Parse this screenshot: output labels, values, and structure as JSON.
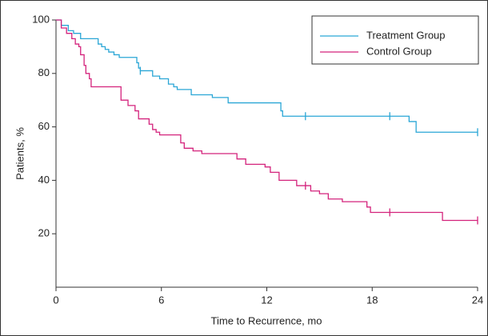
{
  "chart_data": {
    "type": "step",
    "xlabel": "Time to Recurrence, mo",
    "ylabel": "Patients, %",
    "xlim": [
      0,
      24
    ],
    "xticks": [
      0,
      6,
      12,
      18,
      24
    ],
    "ylim": [
      0,
      100
    ],
    "yticks": [
      20,
      40,
      60,
      80,
      100
    ],
    "legend": "upper right",
    "series": [
      {
        "name": "Treatment Group",
        "color": "#2aa6d6",
        "x": [
          0,
          0.3,
          0.7,
          1.0,
          1.4,
          2.4,
          2.6,
          2.8,
          3.0,
          3.3,
          3.6,
          4.6,
          4.7,
          4.8,
          5.5,
          5.9,
          6.4,
          6.7,
          6.9,
          7.7,
          8.9,
          9.8,
          12.8,
          12.9,
          20.1,
          20.5
        ],
        "values": [
          100,
          98,
          96,
          95,
          93,
          91,
          90,
          89,
          88,
          87,
          86,
          84,
          82,
          81,
          79,
          78,
          76,
          75,
          74,
          72,
          71,
          69,
          66,
          64,
          62,
          58
        ],
        "censored_x": [
          4.8,
          14.2,
          19.0,
          24
        ],
        "censored_values": [
          81,
          64,
          64,
          58
        ]
      },
      {
        "name": "Control Group",
        "color": "#d4237c",
        "x": [
          0,
          0.3,
          0.6,
          0.9,
          1.1,
          1.3,
          1.4,
          1.6,
          1.7,
          1.9,
          2.0,
          3.7,
          4.1,
          4.5,
          4.7,
          5.3,
          5.5,
          5.7,
          5.9,
          7.1,
          7.3,
          7.8,
          8.3,
          10.3,
          10.8,
          11.9,
          12.2,
          12.7,
          13.7,
          14.5,
          15.0,
          15.5,
          16.3,
          17.7,
          17.9,
          22.0
        ],
        "values": [
          100,
          97,
          95,
          93,
          91,
          90,
          87,
          83,
          80,
          78,
          75,
          70,
          68,
          66,
          63,
          61,
          59,
          58,
          57,
          54,
          52,
          51,
          50,
          48,
          46,
          45,
          43,
          40,
          38,
          36,
          35,
          33,
          32,
          30,
          28,
          25
        ],
        "censored_x": [
          14.2,
          19.0,
          24
        ],
        "censored_values": [
          38,
          28,
          25
        ]
      }
    ]
  }
}
